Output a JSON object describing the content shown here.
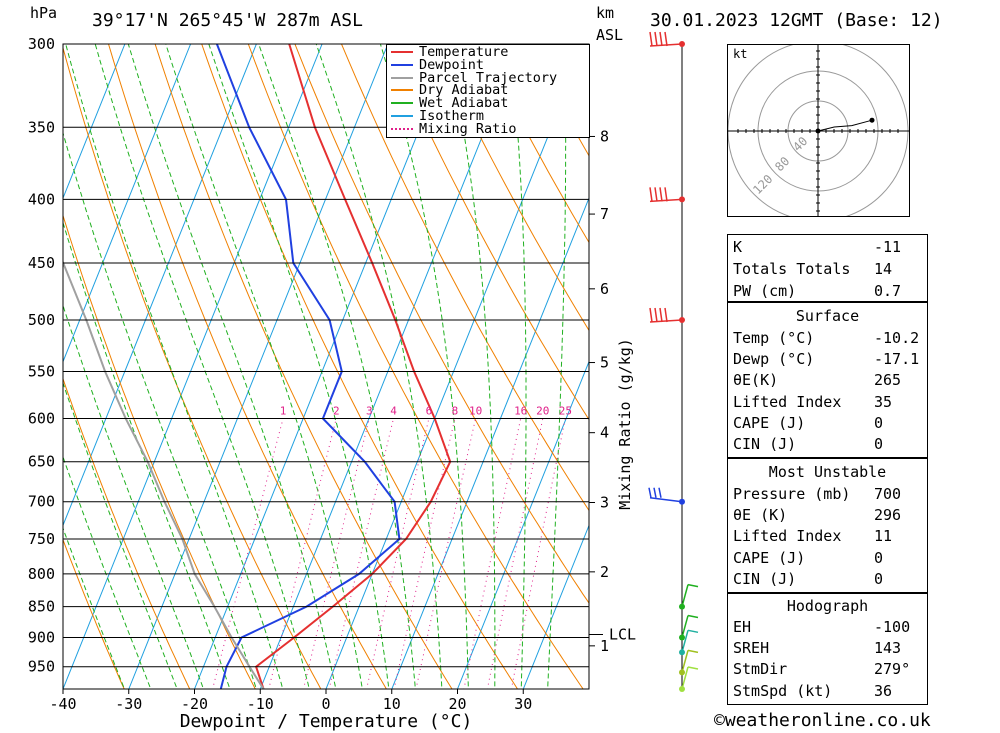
{
  "header": {
    "pressure_unit": "hPa",
    "location": "39°17'N 265°45'W 287m ASL",
    "km_label": "km",
    "asl_label": "ASL",
    "datetime": "30.01.2023 12GMT (Base: 12)"
  },
  "chart_data": {
    "type": "line",
    "xlabel": "Dewpoint / Temperature (°C)",
    "ylabel": "hPa",
    "mixing_ratio_axis_label": "Mixing Ratio (g/kg)",
    "xlim": [
      -40,
      40
    ],
    "ylim_hpa": [
      990,
      300
    ],
    "skew_degC_per_log_decade": 76,
    "x_ticks": [
      -40,
      -30,
      -20,
      -10,
      0,
      10,
      20,
      30
    ],
    "pressure_ticks": [
      300,
      350,
      400,
      450,
      500,
      550,
      600,
      650,
      700,
      750,
      800,
      850,
      900,
      950
    ],
    "km_ticks": [
      {
        "label": "1",
        "p": 914
      },
      {
        "label": "2",
        "p": 797
      },
      {
        "label": "3",
        "p": 701
      },
      {
        "label": "4",
        "p": 616
      },
      {
        "label": "5",
        "p": 541
      },
      {
        "label": "6",
        "p": 472
      },
      {
        "label": "7",
        "p": 411
      },
      {
        "label": "8",
        "p": 356
      }
    ],
    "lcl": {
      "label": "LCL",
      "p": 895
    },
    "mixing_ratio_labels": [
      "1",
      "2",
      "3",
      "4",
      "6",
      "8",
      "10",
      "16",
      "20",
      "25"
    ],
    "mixing_ratio_values": [
      1,
      2,
      3,
      4,
      6,
      8,
      10,
      16,
      20,
      25
    ],
    "legend": [
      {
        "name": "Temperature",
        "color": "#e53030",
        "style": "solid"
      },
      {
        "name": "Dewpoint",
        "color": "#2040e0",
        "style": "solid"
      },
      {
        "name": "Parcel Trajectory",
        "color": "#a0a0a0",
        "style": "solid"
      },
      {
        "name": "Dry Adiabat",
        "color": "#f08000",
        "style": "solid"
      },
      {
        "name": "Wet Adiabat",
        "color": "#20b020",
        "style": "solid"
      },
      {
        "name": "Isotherm",
        "color": "#20a0e0",
        "style": "solid"
      },
      {
        "name": "Mixing Ratio",
        "color": "#e0208a",
        "style": "dotted"
      }
    ],
    "series": [
      {
        "name": "Temperature",
        "color": "#e53030",
        "points": [
          [
            990,
            -9.5
          ],
          [
            950,
            -12
          ],
          [
            900,
            -8
          ],
          [
            850,
            -4
          ],
          [
            800,
            0
          ],
          [
            750,
            3
          ],
          [
            700,
            4.5
          ],
          [
            650,
            5
          ],
          [
            600,
            0
          ],
          [
            550,
            -6
          ],
          [
            500,
            -12
          ],
          [
            450,
            -19
          ],
          [
            400,
            -27
          ],
          [
            350,
            -36
          ],
          [
            300,
            -45
          ]
        ]
      },
      {
        "name": "Dewpoint",
        "color": "#2040e0",
        "points": [
          [
            990,
            -16
          ],
          [
            950,
            -16.5
          ],
          [
            900,
            -16
          ],
          [
            850,
            -8
          ],
          [
            800,
            -2
          ],
          [
            750,
            2
          ],
          [
            700,
            -1
          ],
          [
            650,
            -8
          ],
          [
            600,
            -17
          ],
          [
            550,
            -17
          ],
          [
            500,
            -22
          ],
          [
            450,
            -31
          ],
          [
            400,
            -36
          ],
          [
            350,
            -46
          ],
          [
            300,
            -56
          ]
        ]
      },
      {
        "name": "Parcel Trajectory",
        "color": "#a0a0a0",
        "points": [
          [
            990,
            -9.5
          ],
          [
            950,
            -13
          ],
          [
            900,
            -17.5
          ],
          [
            850,
            -22
          ],
          [
            800,
            -27
          ],
          [
            750,
            -31
          ],
          [
            700,
            -36
          ],
          [
            650,
            -41
          ],
          [
            600,
            -47
          ],
          [
            550,
            -53
          ],
          [
            500,
            -59
          ],
          [
            450,
            -66
          ],
          [
            400,
            -74
          ]
        ]
      }
    ],
    "wind_barbs": [
      {
        "p": 300,
        "color": "#e53030"
      },
      {
        "p": 400,
        "color": "#e53030"
      },
      {
        "p": 500,
        "color": "#e53030"
      },
      {
        "p": 700,
        "color": "#2040e0"
      },
      {
        "p": 850,
        "color": "#20b020"
      },
      {
        "p": 900,
        "color": "#20b020"
      },
      {
        "p": 925,
        "color": "#20b0a0"
      },
      {
        "p": 960,
        "color": "#a0c020"
      },
      {
        "p": 990,
        "color": "#a0e040"
      }
    ]
  },
  "hodograph": {
    "unit_label": "kt",
    "ring_labels": [
      "40",
      "80",
      "120"
    ],
    "points": [
      [
        0,
        0
      ],
      [
        12,
        3
      ],
      [
        25,
        4
      ],
      [
        40,
        8
      ]
    ]
  },
  "indices": {
    "rows": [
      {
        "label": "K",
        "value": "-11"
      },
      {
        "label": "Totals Totals",
        "value": "14"
      },
      {
        "label": "PW (cm)",
        "value": "0.7"
      }
    ]
  },
  "surface": {
    "title": "Surface",
    "rows": [
      {
        "label": "Temp (°C)",
        "value": "-10.2"
      },
      {
        "label": "Dewp (°C)",
        "value": "-17.1"
      },
      {
        "label": "θE(K)",
        "value": "265"
      },
      {
        "label": "Lifted Index",
        "value": "35"
      },
      {
        "label": "CAPE (J)",
        "value": "0"
      },
      {
        "label": "CIN (J)",
        "value": "0"
      }
    ]
  },
  "most_unstable": {
    "title": "Most Unstable",
    "rows": [
      {
        "label": "Pressure (mb)",
        "value": "700"
      },
      {
        "label": "θE (K)",
        "value": "296"
      },
      {
        "label": "Lifted Index",
        "value": "11"
      },
      {
        "label": "CAPE (J)",
        "value": "0"
      },
      {
        "label": "CIN (J)",
        "value": "0"
      }
    ]
  },
  "hodograph_stats": {
    "title": "Hodograph",
    "rows": [
      {
        "label": "EH",
        "value": "-100"
      },
      {
        "label": "SREH",
        "value": "143"
      },
      {
        "label": "StmDir",
        "value": "279°"
      },
      {
        "label": "StmSpd (kt)",
        "value": "36"
      }
    ]
  },
  "footer": {
    "copyright_symbol": "©",
    "site": "weatheronline.co.uk"
  }
}
